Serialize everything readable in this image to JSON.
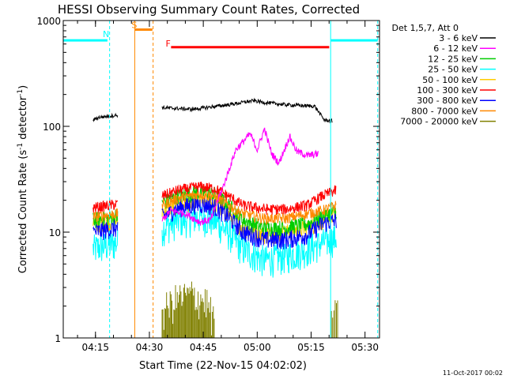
{
  "chart_data": {
    "type": "line",
    "title": "HESSI Observing Summary Count Rates, Corrected",
    "xlabel": "Start Time (22-Nov-15 04:02:02)",
    "ylabel_main": "Corrected Count Rate (s",
    "ylabel_sup1": "-1",
    "ylabel_mid": " detector",
    "ylabel_sup2": "-1",
    "ylabel_end": ")",
    "yscale": "log",
    "ylim": [
      1,
      1000
    ],
    "xlim_minutes": [
      4.0,
      92.0
    ],
    "x_ticks": [
      {
        "label": "04:15",
        "minute": 12.97
      },
      {
        "label": "04:30",
        "minute": 27.97
      },
      {
        "label": "04:45",
        "minute": 42.97
      },
      {
        "label": "05:00",
        "minute": 57.97
      },
      {
        "label": "05:15",
        "minute": 72.97
      },
      {
        "label": "05:30",
        "minute": 87.97
      }
    ],
    "y_ticks": [
      {
        "label": "1",
        "value": 1
      },
      {
        "label": "10",
        "value": 10
      },
      {
        "label": "100",
        "value": 100
      },
      {
        "label": "1000",
        "value": 1000
      }
    ],
    "legend_header": "Det 1,5,7, Att 0",
    "legend_position": "top-right, outside plot",
    "timestamp": "11-Oct-2017 00:02",
    "series": [
      {
        "name": "3 - 6 keV",
        "color": "#000000"
      },
      {
        "name": "6 - 12 keV",
        "color": "#ff00ff"
      },
      {
        "name": "12 - 25 keV",
        "color": "#00cc00"
      },
      {
        "name": "25 - 50 keV",
        "color": "#00ffff"
      },
      {
        "name": "50 - 100 keV",
        "color": "#ffcc00"
      },
      {
        "name": "100 - 300 keV",
        "color": "#ff0000"
      },
      {
        "name": "300 - 800 keV",
        "color": "#0000ff"
      },
      {
        "name": "800 - 7000 keV",
        "color": "#ff8800"
      },
      {
        "name": "7000 - 20000 keV",
        "color": "#808000"
      }
    ],
    "profiles": {
      "black": [
        [
          12.3,
          115
        ],
        [
          14,
          122
        ],
        [
          17,
          125
        ],
        [
          19.2,
          128
        ],
        [
          31.5,
          150
        ],
        [
          40,
          145
        ],
        [
          50,
          160
        ],
        [
          57,
          175
        ],
        [
          60,
          168
        ],
        [
          66,
          160
        ],
        [
          74,
          155
        ],
        [
          76.6,
          115
        ],
        [
          79,
          112
        ]
      ],
      "magenta": [
        [
          31.5,
          13
        ],
        [
          34,
          16
        ],
        [
          38,
          15
        ],
        [
          42,
          12.5
        ],
        [
          45,
          13
        ],
        [
          47,
          20
        ],
        [
          49,
          30
        ],
        [
          52,
          60
        ],
        [
          56,
          85
        ],
        [
          58,
          60
        ],
        [
          60,
          95
        ],
        [
          62,
          55
        ],
        [
          64,
          45
        ],
        [
          67,
          80
        ],
        [
          69,
          58
        ],
        [
          72,
          53
        ],
        [
          75,
          55
        ]
      ],
      "red": [
        [
          12.3,
          17
        ],
        [
          19.2,
          18.5
        ],
        [
          31.5,
          22
        ],
        [
          36,
          25
        ],
        [
          42,
          27
        ],
        [
          46,
          26
        ],
        [
          50,
          22
        ],
        [
          54,
          18
        ],
        [
          60,
          16.5
        ],
        [
          66,
          16.5
        ],
        [
          72,
          18
        ],
        [
          76,
          22
        ],
        [
          80,
          25
        ]
      ],
      "orange": [
        [
          12.3,
          14
        ],
        [
          19.2,
          15
        ],
        [
          31.5,
          18
        ],
        [
          36,
          21
        ],
        [
          42,
          23
        ],
        [
          46,
          22
        ],
        [
          50,
          18
        ],
        [
          54,
          15
        ],
        [
          60,
          13.5
        ],
        [
          66,
          13.5
        ],
        [
          72,
          15
        ],
        [
          76,
          16
        ],
        [
          80,
          18
        ]
      ],
      "yellow": [
        [
          12.3,
          12
        ],
        [
          19.2,
          13
        ],
        [
          31.5,
          16
        ],
        [
          36,
          18.5
        ],
        [
          42,
          20
        ],
        [
          46,
          19
        ],
        [
          50,
          15
        ],
        [
          54,
          11
        ],
        [
          60,
          9.5
        ],
        [
          66,
          10
        ],
        [
          72,
          11
        ],
        [
          76,
          13
        ],
        [
          80,
          15
        ]
      ],
      "green": [
        [
          12.3,
          13
        ],
        [
          19.2,
          14
        ],
        [
          31.5,
          19
        ],
        [
          36,
          22
        ],
        [
          42,
          24
        ],
        [
          46,
          23
        ],
        [
          50,
          18
        ],
        [
          54,
          13
        ],
        [
          60,
          11
        ],
        [
          66,
          11
        ],
        [
          72,
          12
        ],
        [
          76,
          14
        ],
        [
          80,
          16
        ]
      ],
      "blue": [
        [
          12.3,
          10
        ],
        [
          19.2,
          11
        ],
        [
          31.5,
          14
        ],
        [
          36,
          17
        ],
        [
          42,
          18.5
        ],
        [
          46,
          17.5
        ],
        [
          50,
          14
        ],
        [
          54,
          10
        ],
        [
          60,
          8.5
        ],
        [
          66,
          8.5
        ],
        [
          72,
          9.5
        ],
        [
          76,
          12
        ],
        [
          80,
          13
        ]
      ],
      "cyan": [
        [
          12.3,
          7
        ],
        [
          19.2,
          8
        ],
        [
          31.5,
          11
        ],
        [
          36,
          13
        ],
        [
          42,
          14
        ],
        [
          46,
          13
        ],
        [
          50,
          10
        ],
        [
          54,
          7
        ],
        [
          60,
          5.5
        ],
        [
          66,
          6
        ],
        [
          72,
          7
        ],
        [
          76,
          8
        ],
        [
          80,
          9
        ]
      ],
      "olive": [
        [
          31.5,
          1.8
        ],
        [
          36,
          2.4
        ],
        [
          40,
          2.6
        ],
        [
          44,
          2.2
        ],
        [
          46,
          1.4
        ]
      ]
    },
    "annotations": {
      "attenuator_line": {
        "color": "#00ffff",
        "value": 650,
        "segments": [
          [
            4.0,
            16.3
          ],
          [
            78.5,
            91.5
          ]
        ]
      },
      "flare_line": {
        "color": "#ff0000",
        "value": 560,
        "from": 34.0,
        "to": 78.0
      },
      "saa_line": {
        "color": "#ff8800",
        "value": 820,
        "from": 24.0,
        "to": 28.8
      },
      "labels": [
        {
          "text": "N",
          "color": "#00ffff",
          "minute": 15.0,
          "value": 700
        },
        {
          "text": "S",
          "color": "#ff8800",
          "minute": 23.0,
          "value": 850
        },
        {
          "text": "F",
          "color": "#ff0000",
          "minute": 32.5,
          "value": 565
        }
      ],
      "vlines": [
        {
          "minute": 4.0,
          "color": "#00ffff",
          "dashed": false
        },
        {
          "minute": 16.9,
          "color": "#00ffff",
          "dashed": true
        },
        {
          "minute": 23.9,
          "color": "#ff8800",
          "dashed": false
        },
        {
          "minute": 29.0,
          "color": "#ff8800",
          "dashed": true
        },
        {
          "minute": 78.4,
          "color": "#00ffff",
          "dashed": false
        },
        {
          "minute": 91.5,
          "color": "#00ffff",
          "dashed": true
        }
      ]
    }
  }
}
